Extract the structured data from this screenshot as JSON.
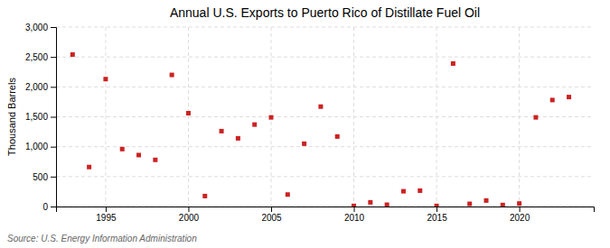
{
  "chart_data": {
    "type": "scatter",
    "title": "Annual U.S. Exports to Puerto Rico of Distillate Fuel Oil",
    "ylabel": "Thousand Barrels",
    "source": "Source: U.S. Energy Information Administration",
    "x": [
      1993,
      1994,
      1995,
      1996,
      1997,
      1998,
      1999,
      2000,
      2001,
      2002,
      2003,
      2004,
      2005,
      2006,
      2007,
      2008,
      2009,
      2010,
      2011,
      2012,
      2013,
      2014,
      2015,
      2016,
      2017,
      2018,
      2019,
      2020,
      2021,
      2022,
      2023
    ],
    "values": [
      2540,
      660,
      2130,
      960,
      860,
      780,
      2200,
      1560,
      175,
      1260,
      1140,
      1370,
      1490,
      200,
      1050,
      1670,
      1170,
      10,
      70,
      30,
      255,
      265,
      10,
      2390,
      45,
      100,
      25,
      50,
      1490,
      1780,
      1830
    ],
    "color": "#cc2222",
    "marker": "square",
    "xlim": [
      1992.0,
      2024.5
    ],
    "ylim": [
      0,
      3000
    ],
    "xticks": [
      1995,
      2000,
      2005,
      2010,
      2015,
      2020
    ],
    "yticks": [
      0,
      500,
      {
        "value": 1000,
        "label": "1,000"
      },
      {
        "value": 1500,
        "label": "1,500"
      },
      {
        "value": 2000,
        "label": "2,000"
      },
      {
        "value": 2500,
        "label": "2,500"
      },
      {
        "value": 3000,
        "label": "3,000"
      }
    ],
    "grid": true
  }
}
